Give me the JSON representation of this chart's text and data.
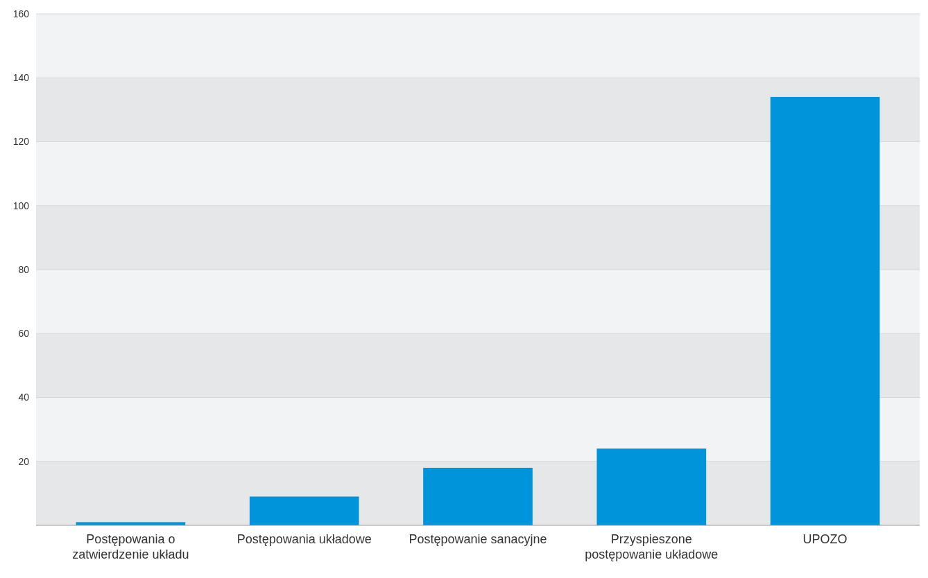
{
  "chart_data": {
    "type": "bar",
    "categories": [
      "Postępowania o zatwierdzenie układu",
      "Postępowania układowe",
      "Postępowanie sanacyjne",
      "Przyspieszone postępowanie układowe",
      "UPOZO"
    ],
    "values": [
      1,
      9,
      18,
      24,
      134
    ],
    "color": "#0095da",
    "ylim": [
      0,
      160
    ],
    "yticks": [
      20,
      40,
      60,
      80,
      100,
      120,
      140,
      160
    ],
    "grid": "y"
  }
}
